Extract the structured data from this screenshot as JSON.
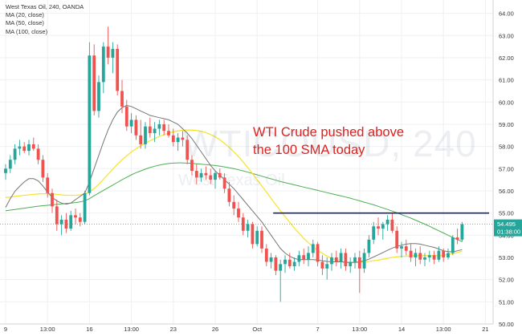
{
  "header": {
    "title": "West Texas Oil, 240, OANDA",
    "indicators": [
      "MA (20, close)",
      "MA (50, close)",
      "MA (100, close)"
    ]
  },
  "watermark": {
    "symbol": "WTICOUSD, 240",
    "description": "West Texas Oil"
  },
  "annotation": {
    "line1": "WTI Crude pushed above",
    "line2": "the 100 SMA today"
  },
  "price_label": {
    "price": "54.495",
    "countdown": "01:38:00"
  },
  "colors": {
    "up": "#26a69a",
    "down": "#ef5350",
    "ma20": "#757575",
    "ma50": "#f7e533",
    "ma100": "#4caf50",
    "resistance": "#1a237e",
    "annotation": "#e0201e",
    "price_label_bg": "#26a69a"
  },
  "chart_data": {
    "type": "candlestick",
    "title": "West Texas Oil, 240, OANDA",
    "ylim": [
      50,
      64.6
    ],
    "yticks": [
      "50.00",
      "51.00",
      "52.00",
      "53.00",
      "54.00",
      "55.00",
      "56.00",
      "57.00",
      "58.00",
      "59.00",
      "60.00",
      "61.00",
      "62.00",
      "63.00",
      "64.00"
    ],
    "xticks": [
      {
        "label": "9",
        "index": 0
      },
      {
        "label": "13:00",
        "index": 9
      },
      {
        "label": "16",
        "index": 18
      },
      {
        "label": "13:00",
        "index": 27
      },
      {
        "label": "23",
        "index": 36
      },
      {
        "label": "26",
        "index": 45
      },
      {
        "label": "Oct",
        "index": 54
      },
      {
        "label": "7",
        "index": 67
      },
      {
        "label": "13:00",
        "index": 76
      },
      {
        "label": "14",
        "index": 85
      },
      {
        "label": "13:00",
        "index": 94
      },
      {
        "label": "21",
        "index": 103
      }
    ],
    "ohlc": [
      [
        56.8,
        57.2,
        56.5,
        57.0
      ],
      [
        57.0,
        57.6,
        56.8,
        57.4
      ],
      [
        57.4,
        58.1,
        57.2,
        57.9
      ],
      [
        57.9,
        58.3,
        57.6,
        58.0
      ],
      [
        58.0,
        58.2,
        57.7,
        57.8
      ],
      [
        57.8,
        58.3,
        57.6,
        58.1
      ],
      [
        58.1,
        58.4,
        57.8,
        57.9
      ],
      [
        57.9,
        58.1,
        57.2,
        57.4
      ],
      [
        57.4,
        57.6,
        56.4,
        56.6
      ],
      [
        56.6,
        56.8,
        55.7,
        55.9
      ],
      [
        55.9,
        56.1,
        55.0,
        55.3
      ],
      [
        55.3,
        55.6,
        54.2,
        54.5
      ],
      [
        54.5,
        54.9,
        54.0,
        54.7
      ],
      [
        54.7,
        55.0,
        54.1,
        54.3
      ],
      [
        54.3,
        55.1,
        54.2,
        54.9
      ],
      [
        54.9,
        55.2,
        54.5,
        54.8
      ],
      [
        54.8,
        55.0,
        54.4,
        54.6
      ],
      [
        54.6,
        56.0,
        54.5,
        55.9
      ],
      [
        55.9,
        62.7,
        55.8,
        62.1
      ],
      [
        62.1,
        62.6,
        59.4,
        59.6
      ],
      [
        59.6,
        61.2,
        59.3,
        60.9
      ],
      [
        60.9,
        62.7,
        60.4,
        62.5
      ],
      [
        62.5,
        63.4,
        61.7,
        62.0
      ],
      [
        62.0,
        62.7,
        61.3,
        62.4
      ],
      [
        62.4,
        62.6,
        60.3,
        60.5
      ],
      [
        60.5,
        61.0,
        59.5,
        59.8
      ],
      [
        59.8,
        60.1,
        58.7,
        58.9
      ],
      [
        58.9,
        59.5,
        58.6,
        59.2
      ],
      [
        59.2,
        59.4,
        58.3,
        58.5
      ],
      [
        58.5,
        59.2,
        57.9,
        58.1
      ],
      [
        58.1,
        59.1,
        57.9,
        58.9
      ],
      [
        58.9,
        59.3,
        58.4,
        58.6
      ],
      [
        58.6,
        59.1,
        58.2,
        58.8
      ],
      [
        58.8,
        59.2,
        58.5,
        59.0
      ],
      [
        59.0,
        59.2,
        58.5,
        58.7
      ],
      [
        58.7,
        59.0,
        58.4,
        58.5
      ],
      [
        58.5,
        58.8,
        58.0,
        58.2
      ],
      [
        58.2,
        58.6,
        57.8,
        58.4
      ],
      [
        58.4,
        58.7,
        58.0,
        58.3
      ],
      [
        58.3,
        58.5,
        57.2,
        57.4
      ],
      [
        57.4,
        57.6,
        56.7,
        56.9
      ],
      [
        56.9,
        57.2,
        56.3,
        56.6
      ],
      [
        56.6,
        57.0,
        56.4,
        56.8
      ],
      [
        56.8,
        57.1,
        56.5,
        56.7
      ],
      [
        56.7,
        57.0,
        56.3,
        56.5
      ],
      [
        56.5,
        56.9,
        56.1,
        56.8
      ],
      [
        56.8,
        57.0,
        56.5,
        56.6
      ],
      [
        56.6,
        56.8,
        55.9,
        56.1
      ],
      [
        56.1,
        56.4,
        55.3,
        55.5
      ],
      [
        55.5,
        55.8,
        54.9,
        55.2
      ],
      [
        55.2,
        55.5,
        54.6,
        54.8
      ],
      [
        54.8,
        55.0,
        54.0,
        54.2
      ],
      [
        54.2,
        54.7,
        53.9,
        54.5
      ],
      [
        54.5,
        54.6,
        53.4,
        53.6
      ],
      [
        53.6,
        54.4,
        53.5,
        54.2
      ],
      [
        54.2,
        54.4,
        53.2,
        53.4
      ],
      [
        53.4,
        53.6,
        52.6,
        52.8
      ],
      [
        52.8,
        53.2,
        52.5,
        53.0
      ],
      [
        53.0,
        53.1,
        52.2,
        52.4
      ],
      [
        52.4,
        52.9,
        51.0,
        52.7
      ],
      [
        52.7,
        53.1,
        52.3,
        52.9
      ],
      [
        52.9,
        53.2,
        52.5,
        52.6
      ],
      [
        52.6,
        53.0,
        52.4,
        52.8
      ],
      [
        52.8,
        53.3,
        52.6,
        53.1
      ],
      [
        53.1,
        53.4,
        52.7,
        52.9
      ],
      [
        52.9,
        53.5,
        52.6,
        53.2
      ],
      [
        53.2,
        53.8,
        53.0,
        53.6
      ],
      [
        53.6,
        53.7,
        52.6,
        52.8
      ],
      [
        52.8,
        53.1,
        52.2,
        52.5
      ],
      [
        52.5,
        53.0,
        52.0,
        52.7
      ],
      [
        52.7,
        53.2,
        52.4,
        53.0
      ],
      [
        53.0,
        53.3,
        52.6,
        52.8
      ],
      [
        52.8,
        53.4,
        52.5,
        53.2
      ],
      [
        53.2,
        53.4,
        52.4,
        52.6
      ],
      [
        52.6,
        53.0,
        52.3,
        52.8
      ],
      [
        52.8,
        53.2,
        52.5,
        53.0
      ],
      [
        53.0,
        53.3,
        51.4,
        52.5
      ],
      [
        52.5,
        53.4,
        52.3,
        53.2
      ],
      [
        53.2,
        54.0,
        53.0,
        53.8
      ],
      [
        53.8,
        54.6,
        53.6,
        54.4
      ],
      [
        54.4,
        54.8,
        54.0,
        54.3
      ],
      [
        54.3,
        54.6,
        53.8,
        54.5
      ],
      [
        54.5,
        54.9,
        54.2,
        54.7
      ],
      [
        54.7,
        55.0,
        54.1,
        54.2
      ],
      [
        54.2,
        54.4,
        53.2,
        53.4
      ],
      [
        53.4,
        53.7,
        53.0,
        53.5
      ],
      [
        53.5,
        53.8,
        53.1,
        53.3
      ],
      [
        53.3,
        53.6,
        52.8,
        53.0
      ],
      [
        53.0,
        53.4,
        52.6,
        53.2
      ],
      [
        53.2,
        53.5,
        52.7,
        52.9
      ],
      [
        52.9,
        53.2,
        52.6,
        53.0
      ],
      [
        53.0,
        53.3,
        52.8,
        53.1
      ],
      [
        53.1,
        53.3,
        52.7,
        52.9
      ],
      [
        52.9,
        53.5,
        52.8,
        53.3
      ],
      [
        53.3,
        53.4,
        52.8,
        53.0
      ],
      [
        53.0,
        53.4,
        52.9,
        53.2
      ],
      [
        53.2,
        54.0,
        53.1,
        53.9
      ],
      [
        53.9,
        54.3,
        53.6,
        53.8
      ],
      [
        53.8,
        54.6,
        53.7,
        54.495
      ]
    ],
    "ma20": [
      55.25,
      55.65,
      55.98,
      56.2,
      56.4,
      56.55,
      56.55,
      56.45,
      56.22,
      55.95,
      55.7,
      55.55,
      55.45,
      55.4,
      55.45,
      55.6,
      55.75,
      55.9,
      56.4,
      57.0,
      57.6,
      58.2,
      58.75,
      59.2,
      59.55,
      59.75,
      59.85,
      59.8,
      59.7,
      59.6,
      59.5,
      59.4,
      59.35,
      59.3,
      59.25,
      59.2,
      59.1,
      59.0,
      58.8,
      58.6,
      58.35,
      58.05,
      57.75,
      57.45,
      57.15,
      56.9,
      56.7,
      56.5,
      56.3,
      56.1,
      55.85,
      55.6,
      55.35,
      55.1,
      54.85,
      54.6,
      54.3,
      54.0,
      53.7,
      53.4,
      53.2,
      53.05,
      52.95,
      52.9,
      52.9,
      52.9,
      52.9,
      52.88,
      52.85,
      52.82,
      52.8,
      52.8,
      52.8,
      52.78,
      52.78,
      52.78,
      52.8,
      52.85,
      52.92,
      53.02,
      53.12,
      53.22,
      53.32,
      53.42,
      53.5,
      53.55,
      53.6,
      53.62,
      53.62,
      53.6,
      53.55,
      53.5,
      53.45,
      53.38,
      53.3,
      53.26,
      53.25,
      53.3,
      53.35
    ],
    "ma50": [
      55.7,
      55.72,
      55.75,
      55.78,
      55.8,
      55.82,
      55.84,
      55.86,
      55.87,
      55.87,
      55.86,
      55.84,
      55.82,
      55.8,
      55.8,
      55.8,
      55.82,
      55.85,
      55.95,
      56.1,
      56.3,
      56.52,
      56.75,
      56.98,
      57.2,
      57.4,
      57.58,
      57.75,
      57.9,
      58.03,
      58.15,
      58.26,
      58.36,
      58.45,
      58.53,
      58.6,
      58.66,
      58.7,
      58.73,
      58.74,
      58.74,
      58.72,
      58.68,
      58.62,
      58.54,
      58.44,
      58.3,
      58.14,
      57.96,
      57.76,
      57.54,
      57.3,
      57.04,
      56.78,
      56.5,
      56.22,
      55.94,
      55.66,
      55.38,
      55.1,
      54.84,
      54.58,
      54.32,
      54.08,
      53.86,
      53.66,
      53.48,
      53.32,
      53.18,
      53.06,
      52.96,
      52.88,
      52.82,
      52.78,
      52.76,
      52.76,
      52.78,
      52.8,
      52.82,
      52.85,
      52.88,
      52.92,
      52.96,
      53.0,
      53.03,
      53.05,
      53.06,
      53.07,
      53.08,
      53.08,
      53.08,
      53.08,
      53.08,
      53.08,
      53.1,
      53.13,
      53.17,
      53.22,
      53.28
    ],
    "ma100": [
      55.1,
      55.13,
      55.16,
      55.19,
      55.22,
      55.25,
      55.28,
      55.31,
      55.33,
      55.35,
      55.37,
      55.39,
      55.41,
      55.43,
      55.45,
      55.47,
      55.5,
      55.55,
      55.65,
      55.78,
      55.9,
      56.02,
      56.14,
      56.26,
      56.38,
      56.5,
      56.61,
      56.72,
      56.82,
      56.9,
      56.98,
      57.05,
      57.11,
      57.16,
      57.2,
      57.23,
      57.25,
      57.26,
      57.26,
      57.25,
      57.24,
      57.22,
      57.2,
      57.18,
      57.16,
      57.14,
      57.11,
      57.08,
      57.04,
      57.0,
      56.95,
      56.9,
      56.84,
      56.78,
      56.72,
      56.66,
      56.6,
      56.54,
      56.48,
      56.42,
      56.37,
      56.32,
      56.27,
      56.22,
      56.17,
      56.12,
      56.07,
      56.02,
      55.97,
      55.92,
      55.87,
      55.82,
      55.77,
      55.72,
      55.67,
      55.61,
      55.55,
      55.49,
      55.43,
      55.37,
      55.3,
      55.23,
      55.16,
      55.09,
      55.01,
      54.93,
      54.85,
      54.77,
      54.68,
      54.59,
      54.5,
      54.4,
      54.3,
      54.2,
      54.1,
      54.0,
      53.9,
      53.8,
      53.72
    ],
    "resistance": {
      "price": 55.0,
      "from_index": 54,
      "to_index": 98
    },
    "last_price": 54.495
  }
}
